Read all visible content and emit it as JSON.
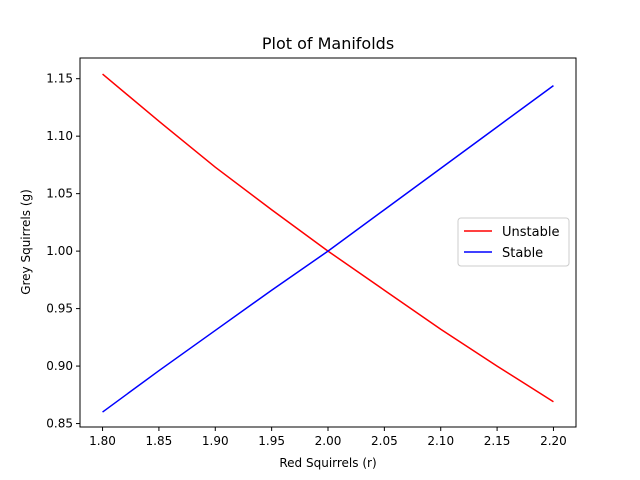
{
  "chart_data": {
    "type": "line",
    "title": "Plot of Manifolds",
    "xlabel": "Red Squirrels (r)",
    "ylabel": "Grey Squirrels (g)",
    "xlim": [
      1.78,
      2.22
    ],
    "ylim": [
      0.847,
      1.168
    ],
    "xticks": [
      "1.80",
      "1.85",
      "1.90",
      "1.95",
      "2.00",
      "2.05",
      "2.10",
      "2.15",
      "2.20"
    ],
    "yticks": [
      "0.85",
      "0.90",
      "0.95",
      "1.00",
      "1.05",
      "1.10",
      "1.15"
    ],
    "grid": false,
    "legend_position": "center-right",
    "series": [
      {
        "name": "Unstable",
        "color": "#ff0000",
        "x": [
          1.8,
          1.85,
          1.9,
          1.95,
          2.0,
          2.05,
          2.1,
          2.15,
          2.2
        ],
        "y": [
          1.154,
          1.113,
          1.073,
          1.036,
          1.0,
          0.966,
          0.932,
          0.9,
          0.869
        ]
      },
      {
        "name": "Stable",
        "color": "#0000ff",
        "x": [
          1.8,
          1.85,
          1.9,
          1.95,
          2.0,
          2.05,
          2.1,
          2.15,
          2.2
        ],
        "y": [
          0.86,
          0.896,
          0.931,
          0.966,
          1.0,
          1.036,
          1.072,
          1.108,
          1.144
        ]
      }
    ]
  }
}
